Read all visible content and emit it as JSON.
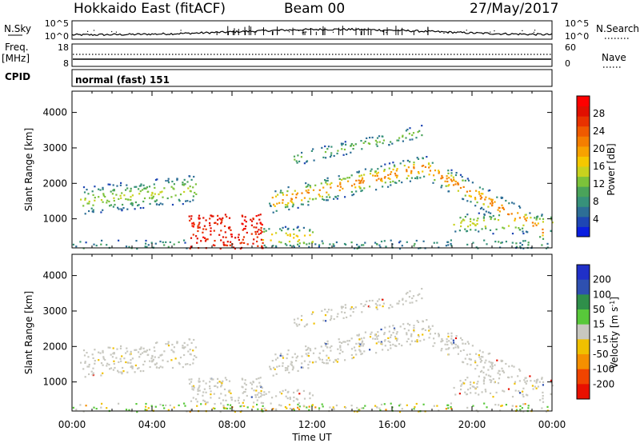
{
  "header": {
    "title": "Hokkaido East (fitACF)",
    "beam": "Beam 00",
    "date": "27/May/2017"
  },
  "strip_nsky": {
    "left_label": "N.Sky",
    "right_label": "N.Search",
    "left_ticks": [
      "10^5",
      "10^0"
    ],
    "right_ticks": [
      "10^5",
      "10^0"
    ]
  },
  "strip_freq": {
    "left_label_1": "Freq.",
    "left_label_2": "[MHz]",
    "right_label": "Nave",
    "left_ticks": [
      "18",
      "8"
    ],
    "right_ticks": [
      "60",
      "0"
    ]
  },
  "strip_cpid": {
    "left_label": "CPID",
    "text": "normal (fast) 151"
  },
  "xaxis": {
    "label": "Time UT",
    "ticks": [
      "00:00",
      "04:00",
      "08:00",
      "12:00",
      "16:00",
      "20:00",
      "00:00"
    ]
  },
  "chart_data": [
    {
      "type": "heatmap",
      "panel": "power",
      "ylabel": "Slant Range [km]",
      "yticks": [
        1000,
        2000,
        3000,
        4000
      ],
      "ylim": [
        180,
        4600
      ],
      "xlim_hours": [
        0,
        24
      ],
      "colorbar": {
        "label": "Power [dB]",
        "ticks": [
          4,
          8,
          12,
          16,
          20,
          24,
          28
        ],
        "range": [
          0,
          32
        ],
        "colors": [
          "#0a1ee0",
          "#1e46b4",
          "#2d6e96",
          "#37917a",
          "#4aa35a",
          "#7cc23a",
          "#c8d21e",
          "#f5c800",
          "#f7a200",
          "#f47e00",
          "#ef5a00",
          "#e83200",
          "#e10f00",
          "#ff0000"
        ]
      },
      "features": [
        {
          "name": "dense near-range echoes",
          "time_start": "06:00",
          "time_end": "09:30",
          "range_min_km": 300,
          "range_max_km": 1100,
          "power_db": 30
        },
        {
          "name": "morning band",
          "time_start": "00:30",
          "time_end": "06:00",
          "range_min_km": 1000,
          "range_max_km": 2100,
          "power_db": 14
        },
        {
          "name": "main arc",
          "time_start": "10:00",
          "time_end": "23:30",
          "range_min_km": 600,
          "range_max_km": 2700,
          "power_db": 20
        },
        {
          "name": "upper filaments",
          "time_start": "11:00",
          "time_end": "17:00",
          "range_min_km": 2500,
          "range_max_km": 3700,
          "power_db": 12
        }
      ]
    },
    {
      "type": "heatmap",
      "panel": "velocity",
      "ylabel": "Slant Range [km]",
      "yticks": [
        1000,
        2000,
        3000,
        4000
      ],
      "ylim": [
        180,
        4600
      ],
      "xlim_hours": [
        0,
        24
      ],
      "colorbar": {
        "label": "Velocity [m s^-1]",
        "ticks": [
          200,
          100,
          50,
          15,
          -15,
          -50,
          -100,
          -200
        ],
        "colors": [
          "#2030c8",
          "#2e50b0",
          "#2f8f4a",
          "#58c83a",
          "#c8c8c0",
          "#f0c000",
          "#f59000",
          "#f04400",
          "#e81000"
        ]
      },
      "features": [
        {
          "name": "ground scatter",
          "time_start": "00:00",
          "time_end": "24:00",
          "velocity_ms": 0
        },
        {
          "name": "near-range sporadic",
          "time_start": "00:00",
          "time_end": "24:00",
          "range_min_km": 180,
          "range_max_km": 400,
          "velocity_ms": 20
        }
      ]
    }
  ]
}
